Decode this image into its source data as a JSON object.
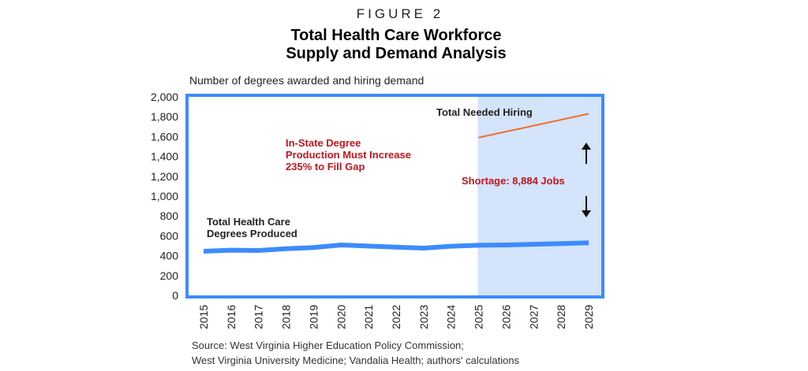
{
  "figure_label": "FIGURE 2",
  "chart_data": {
    "type": "line",
    "title": [
      "Total Health Care Workforce",
      "Supply and Demand Analysis"
    ],
    "ylabel": "Number of degrees awarded and hiring demand",
    "xlabel": "",
    "ylim": [
      0,
      2000
    ],
    "yticks": [
      "0",
      "200",
      "400",
      "600",
      "800",
      "1,000",
      "1,200",
      "1,400",
      "1,600",
      "1,800",
      "2,000"
    ],
    "ytick_values": [
      0,
      200,
      400,
      600,
      800,
      1000,
      1200,
      1400,
      1600,
      1800,
      2000
    ],
    "categories": [
      "2015",
      "2016",
      "2017",
      "2018",
      "2019",
      "2020",
      "2021",
      "2022",
      "2023",
      "2024",
      "2025",
      "2026",
      "2027",
      "2028",
      "2029"
    ],
    "grid": false,
    "shaded_projection_from": "2025",
    "series": [
      {
        "name": "Total Health Care Degrees Produced",
        "name_lines": [
          "Total Health Care",
          "Degrees Produced"
        ],
        "color": "#3d8bfd",
        "x": [
          2015,
          2016,
          2017,
          2018,
          2019,
          2020,
          2021,
          2022,
          2023,
          2024,
          2025,
          2026,
          2027,
          2028,
          2029
        ],
        "values": [
          444,
          455,
          452,
          470,
          482,
          508,
          497,
          486,
          476,
          495,
          505,
          508,
          515,
          522,
          530
        ]
      },
      {
        "name": "Total Needed Hiring",
        "color": "#f26b2a",
        "x": [
          2025,
          2029
        ],
        "values": [
          1590,
          1830
        ]
      }
    ],
    "annotations": {
      "increase": [
        "In-State Degree",
        "Production Must Increase",
        "235% to Fill Gap"
      ],
      "shortage": "Shortage: 8,884 Jobs"
    },
    "colors": {
      "frame": "#3d8bfd",
      "shade": "#d3e4fb",
      "annotation_red": "#c0161e"
    }
  },
  "source": [
    "Source: West Virginia Higher Education Policy Commission;",
    "West Virginia University Medicine; Vandalia Health; authors' calculations"
  ]
}
